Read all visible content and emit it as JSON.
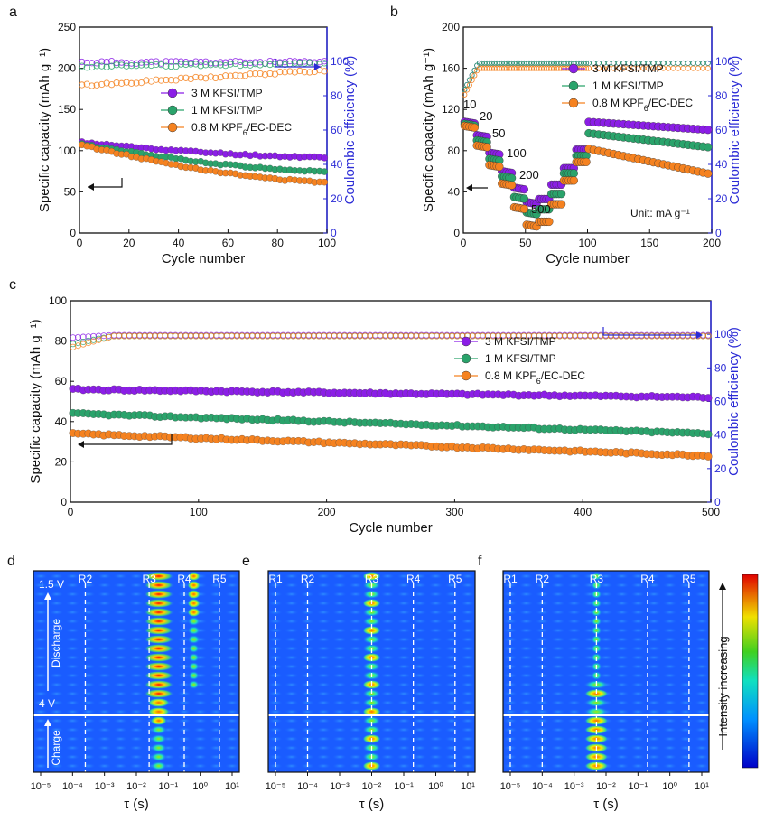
{
  "colors": {
    "purple": "#8b1ee6",
    "green": "#2aa36b",
    "orange": "#f58220",
    "blue_axis": "#2b2bd6",
    "black": "#111111"
  },
  "legend_labels": [
    "3 M KFSI/TMP",
    "1 M KFSI/TMP",
    "0.8 M KPF6/EC-DEC"
  ],
  "chart_data": [
    {
      "id": "a",
      "panel_label": "a",
      "type": "scatter",
      "xlabel": "Cycle number",
      "ylabel": "Specific capacity (mAh g⁻¹)",
      "y2label": "Coulombic efficiency (%)",
      "xlim": [
        0,
        100
      ],
      "ylim": [
        0,
        250
      ],
      "y2lim": [
        0,
        120
      ],
      "xticks": [
        "0",
        "20",
        "40",
        "60",
        "80",
        "100"
      ],
      "yticks": [
        "0",
        "50",
        "100",
        "150",
        "200",
        "250"
      ],
      "y2ticks": [
        "0",
        "20",
        "40",
        "60",
        "80",
        "100"
      ],
      "series": [
        {
          "name": "3 M KFSI/TMP",
          "capacity_start": 110,
          "capacity_end": 92,
          "ce_start": 99.5,
          "ce_end": 99.5
        },
        {
          "name": "1 M KFSI/TMP",
          "capacity_start": 108,
          "capacity_end": 75,
          "ce_start": 97,
          "ce_end": 99
        },
        {
          "name": "0.8 M KPF6/EC-DEC",
          "capacity_start": 107,
          "capacity_end": 62,
          "ce_start": 86,
          "ce_end": 95
        }
      ]
    },
    {
      "id": "b",
      "panel_label": "b",
      "type": "scatter",
      "xlabel": "Cycle number",
      "ylabel": "Specific capacity (mAh g⁻¹)",
      "y2label": "Coulombic efficiency (%)",
      "xlim": [
        0,
        200
      ],
      "ylim": [
        0,
        200
      ],
      "y2lim": [
        0,
        120
      ],
      "xticks": [
        "0",
        "50",
        "100",
        "150",
        "200"
      ],
      "yticks": [
        "0",
        "40",
        "80",
        "120",
        "160",
        "200"
      ],
      "y2ticks": [
        "0",
        "20",
        "40",
        "60",
        "80",
        "100"
      ],
      "rate_labels": [
        "10",
        "20",
        "50",
        "100",
        "200",
        "500"
      ],
      "unit_note": "Unit: mA g⁻¹",
      "rate_steps": [
        {
          "name": "3 M KFSI/TMP",
          "values": [
            108,
            95,
            78,
            60,
            44,
            30,
            108,
            100
          ]
        },
        {
          "name": "1 M KFSI/TMP",
          "values": [
            106,
            90,
            72,
            55,
            35,
            20,
            97,
            83
          ]
        },
        {
          "name": "0.8 M KPF6/EC-DEC",
          "values": [
            104,
            85,
            66,
            48,
            25,
            8,
            82,
            57
          ]
        }
      ]
    },
    {
      "id": "c",
      "panel_label": "c",
      "type": "scatter",
      "xlabel": "Cycle number",
      "ylabel": "Specific capacity (mAh g⁻¹)",
      "y2label": "Coulombic efficiency (%)",
      "xlim": [
        0,
        500
      ],
      "ylim": [
        0,
        100
      ],
      "y2lim": [
        0,
        120
      ],
      "xticks": [
        "0",
        "100",
        "200",
        "300",
        "400",
        "500"
      ],
      "yticks": [
        "0",
        "20",
        "40",
        "60",
        "80",
        "100"
      ],
      "y2ticks": [
        "0",
        "20",
        "40",
        "60",
        "80",
        "100"
      ],
      "series": [
        {
          "name": "3 M KFSI/TMP",
          "capacity_start": 56,
          "capacity_end": 52,
          "ce_start": 98,
          "ce_end": 99.5
        },
        {
          "name": "1 M KFSI/TMP",
          "capacity_start": 44,
          "capacity_end": 34,
          "ce_start": 94,
          "ce_end": 99
        },
        {
          "name": "0.8 M KPF6/EC-DEC",
          "capacity_start": 34,
          "capacity_end": 23,
          "ce_start": 92,
          "ce_end": 99
        }
      ]
    },
    {
      "id": "d",
      "panel_label": "d",
      "type": "heatmap",
      "xlabel": "τ (s)",
      "xticks": [
        "10⁻⁵",
        "10⁻⁴",
        "10⁻³",
        "10⁻²",
        "10⁻¹",
        "10⁰",
        "10¹"
      ],
      "regions": [
        "R2",
        "R3",
        "R4",
        "R5"
      ],
      "region_log_tau": [
        -3.6,
        -1.6,
        -0.5,
        0.6
      ],
      "peak_log_tau": [
        -1.3,
        -0.2
      ],
      "left_labels": {
        "top": "1.5 V",
        "bottom": "4 V",
        "discharge": "Discharge",
        "charge": "Charge"
      }
    },
    {
      "id": "e",
      "panel_label": "e",
      "type": "heatmap",
      "xlabel": "τ (s)",
      "xticks": [
        "10⁻⁵",
        "10⁻⁴",
        "10⁻³",
        "10⁻²",
        "10⁻¹",
        "10⁰",
        "10¹"
      ],
      "regions": [
        "R1",
        "R2",
        "R3",
        "R4",
        "R5"
      ],
      "region_log_tau": [
        -5.0,
        -4.0,
        -2.0,
        -0.7,
        0.6
      ],
      "peak_log_tau": [
        -2.0
      ]
    },
    {
      "id": "f",
      "panel_label": "f",
      "type": "heatmap",
      "xlabel": "τ (s)",
      "xticks": [
        "10⁻⁵",
        "10⁻⁴",
        "10⁻³",
        "10⁻²",
        "10⁻¹",
        "10⁰",
        "10¹"
      ],
      "regions": [
        "R1",
        "R2",
        "R3",
        "R4",
        "R5"
      ],
      "region_log_tau": [
        -5.0,
        -4.0,
        -2.3,
        -0.7,
        0.6
      ],
      "peak_log_tau": [
        -2.3
      ]
    }
  ],
  "colorbar_label": "Intensity increasing"
}
